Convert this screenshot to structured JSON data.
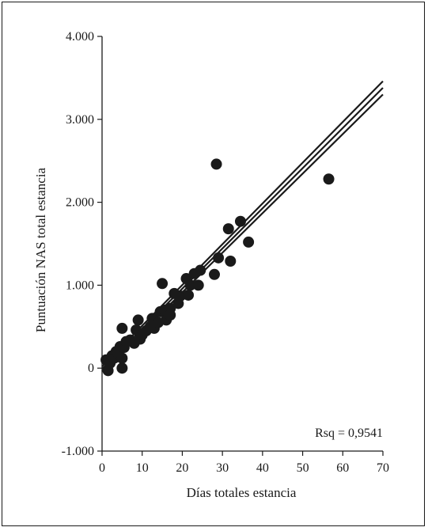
{
  "chart_data": {
    "type": "scatter",
    "title": "",
    "xlabel": "Días totales estancia",
    "ylabel": "Puntuación NAS total estancia",
    "xlim": [
      0,
      70
    ],
    "ylim": [
      -1000,
      4000
    ],
    "x_ticks": [
      0,
      10,
      20,
      30,
      40,
      50,
      60,
      70
    ],
    "x_tick_labels": [
      "0",
      "10",
      "20",
      "30",
      "40",
      "50",
      "60",
      "70"
    ],
    "y_ticks": [
      -1000,
      0,
      1000,
      2000,
      3000,
      4000
    ],
    "y_tick_labels": [
      "-1.000",
      "0",
      "1.000",
      "2.000",
      "3.000",
      "4.000"
    ],
    "grid": false,
    "annotation": "Rsq = 0,9541",
    "marker_color": "#1a1a1a",
    "line_color": "#1a1a1a",
    "points": [
      {
        "x": 1,
        "y": 100
      },
      {
        "x": 1.5,
        "y": -30
      },
      {
        "x": 2,
        "y": 60
      },
      {
        "x": 2.5,
        "y": 150
      },
      {
        "x": 3,
        "y": 120
      },
      {
        "x": 3.5,
        "y": 200
      },
      {
        "x": 4,
        "y": 180
      },
      {
        "x": 4.5,
        "y": 260
      },
      {
        "x": 5,
        "y": 0
      },
      {
        "x": 5,
        "y": 120
      },
      {
        "x": 5,
        "y": 480
      },
      {
        "x": 5.5,
        "y": 250
      },
      {
        "x": 6,
        "y": 320
      },
      {
        "x": 7,
        "y": 340
      },
      {
        "x": 8,
        "y": 300
      },
      {
        "x": 8.5,
        "y": 460
      },
      {
        "x": 9,
        "y": 580
      },
      {
        "x": 9.5,
        "y": 350
      },
      {
        "x": 10,
        "y": 400
      },
      {
        "x": 11,
        "y": 450
      },
      {
        "x": 12,
        "y": 500
      },
      {
        "x": 12.5,
        "y": 600
      },
      {
        "x": 13,
        "y": 480
      },
      {
        "x": 14,
        "y": 550
      },
      {
        "x": 14.5,
        "y": 680
      },
      {
        "x": 15,
        "y": 1020
      },
      {
        "x": 15.5,
        "y": 700
      },
      {
        "x": 16,
        "y": 580
      },
      {
        "x": 17,
        "y": 720
      },
      {
        "x": 17,
        "y": 640
      },
      {
        "x": 18,
        "y": 900
      },
      {
        "x": 19,
        "y": 780
      },
      {
        "x": 19.5,
        "y": 870
      },
      {
        "x": 21,
        "y": 1080
      },
      {
        "x": 21.5,
        "y": 880
      },
      {
        "x": 22,
        "y": 1000
      },
      {
        "x": 23,
        "y": 1140
      },
      {
        "x": 24,
        "y": 1000
      },
      {
        "x": 24.5,
        "y": 1180
      },
      {
        "x": 28,
        "y": 1130
      },
      {
        "x": 28.5,
        "y": 2460
      },
      {
        "x": 29,
        "y": 1330
      },
      {
        "x": 31.5,
        "y": 1680
      },
      {
        "x": 32,
        "y": 1290
      },
      {
        "x": 34.5,
        "y": 1770
      },
      {
        "x": 36.5,
        "y": 1520
      },
      {
        "x": 56.5,
        "y": 2280
      }
    ],
    "regression_lines": [
      {
        "x": [
          0,
          70
        ],
        "y": [
          20,
          3460
        ]
      },
      {
        "x": [
          0,
          70
        ],
        "y": [
          -10,
          3380
        ]
      },
      {
        "x": [
          0,
          70
        ],
        "y": [
          -40,
          3300
        ]
      }
    ]
  }
}
